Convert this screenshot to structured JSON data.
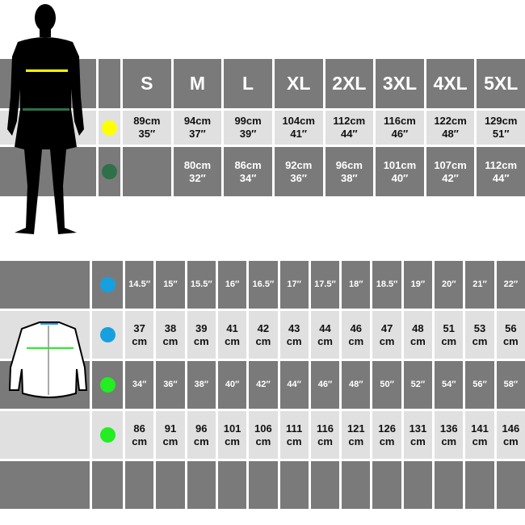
{
  "colors": {
    "chest_top": "#ffff00",
    "waist_top": "#2e7048",
    "collar": "#16a0e0",
    "chest": "#22ee22"
  },
  "top_table": {
    "sizes": [
      "S",
      "M",
      "L",
      "XL",
      "2XL",
      "3XL",
      "4XL",
      "5XL"
    ],
    "chest": [
      [
        "89cm",
        "35″"
      ],
      [
        "94cm",
        "37″"
      ],
      [
        "99cm",
        "39″"
      ],
      [
        "104cm",
        "41″"
      ],
      [
        "112cm",
        "44″"
      ],
      [
        "116cm",
        "46″"
      ],
      [
        "122cm",
        "48″"
      ],
      [
        "129cm",
        "51″"
      ]
    ],
    "waist": [
      [
        "",
        ""
      ],
      [
        "80cm",
        "32″"
      ],
      [
        "86cm",
        "34″"
      ],
      [
        "92cm",
        "36″"
      ],
      [
        "96cm",
        "38″"
      ],
      [
        "101cm",
        "40″"
      ],
      [
        "107cm",
        "42″"
      ],
      [
        "112cm",
        "44″"
      ]
    ]
  },
  "bottom_table": {
    "collar_in": [
      "14.5″",
      "15″",
      "15.5″",
      "16″",
      "16.5″",
      "17″",
      "17.5″",
      "18″",
      "18.5″",
      "19″",
      "20″",
      "21″",
      "22″"
    ],
    "collar_cm": [
      "37",
      "38",
      "39",
      "41",
      "42",
      "43",
      "44",
      "46",
      "47",
      "48",
      "51",
      "53",
      "56"
    ],
    "chest_in": [
      "34″",
      "36″",
      "38″",
      "40″",
      "42″",
      "44″",
      "46″",
      "48″",
      "50″",
      "52″",
      "54″",
      "56″",
      "58″"
    ],
    "chest_cm": [
      "86",
      "91",
      "96",
      "101",
      "106",
      "111",
      "116",
      "121",
      "126",
      "131",
      "136",
      "141",
      "146"
    ],
    "unit": "cm"
  }
}
